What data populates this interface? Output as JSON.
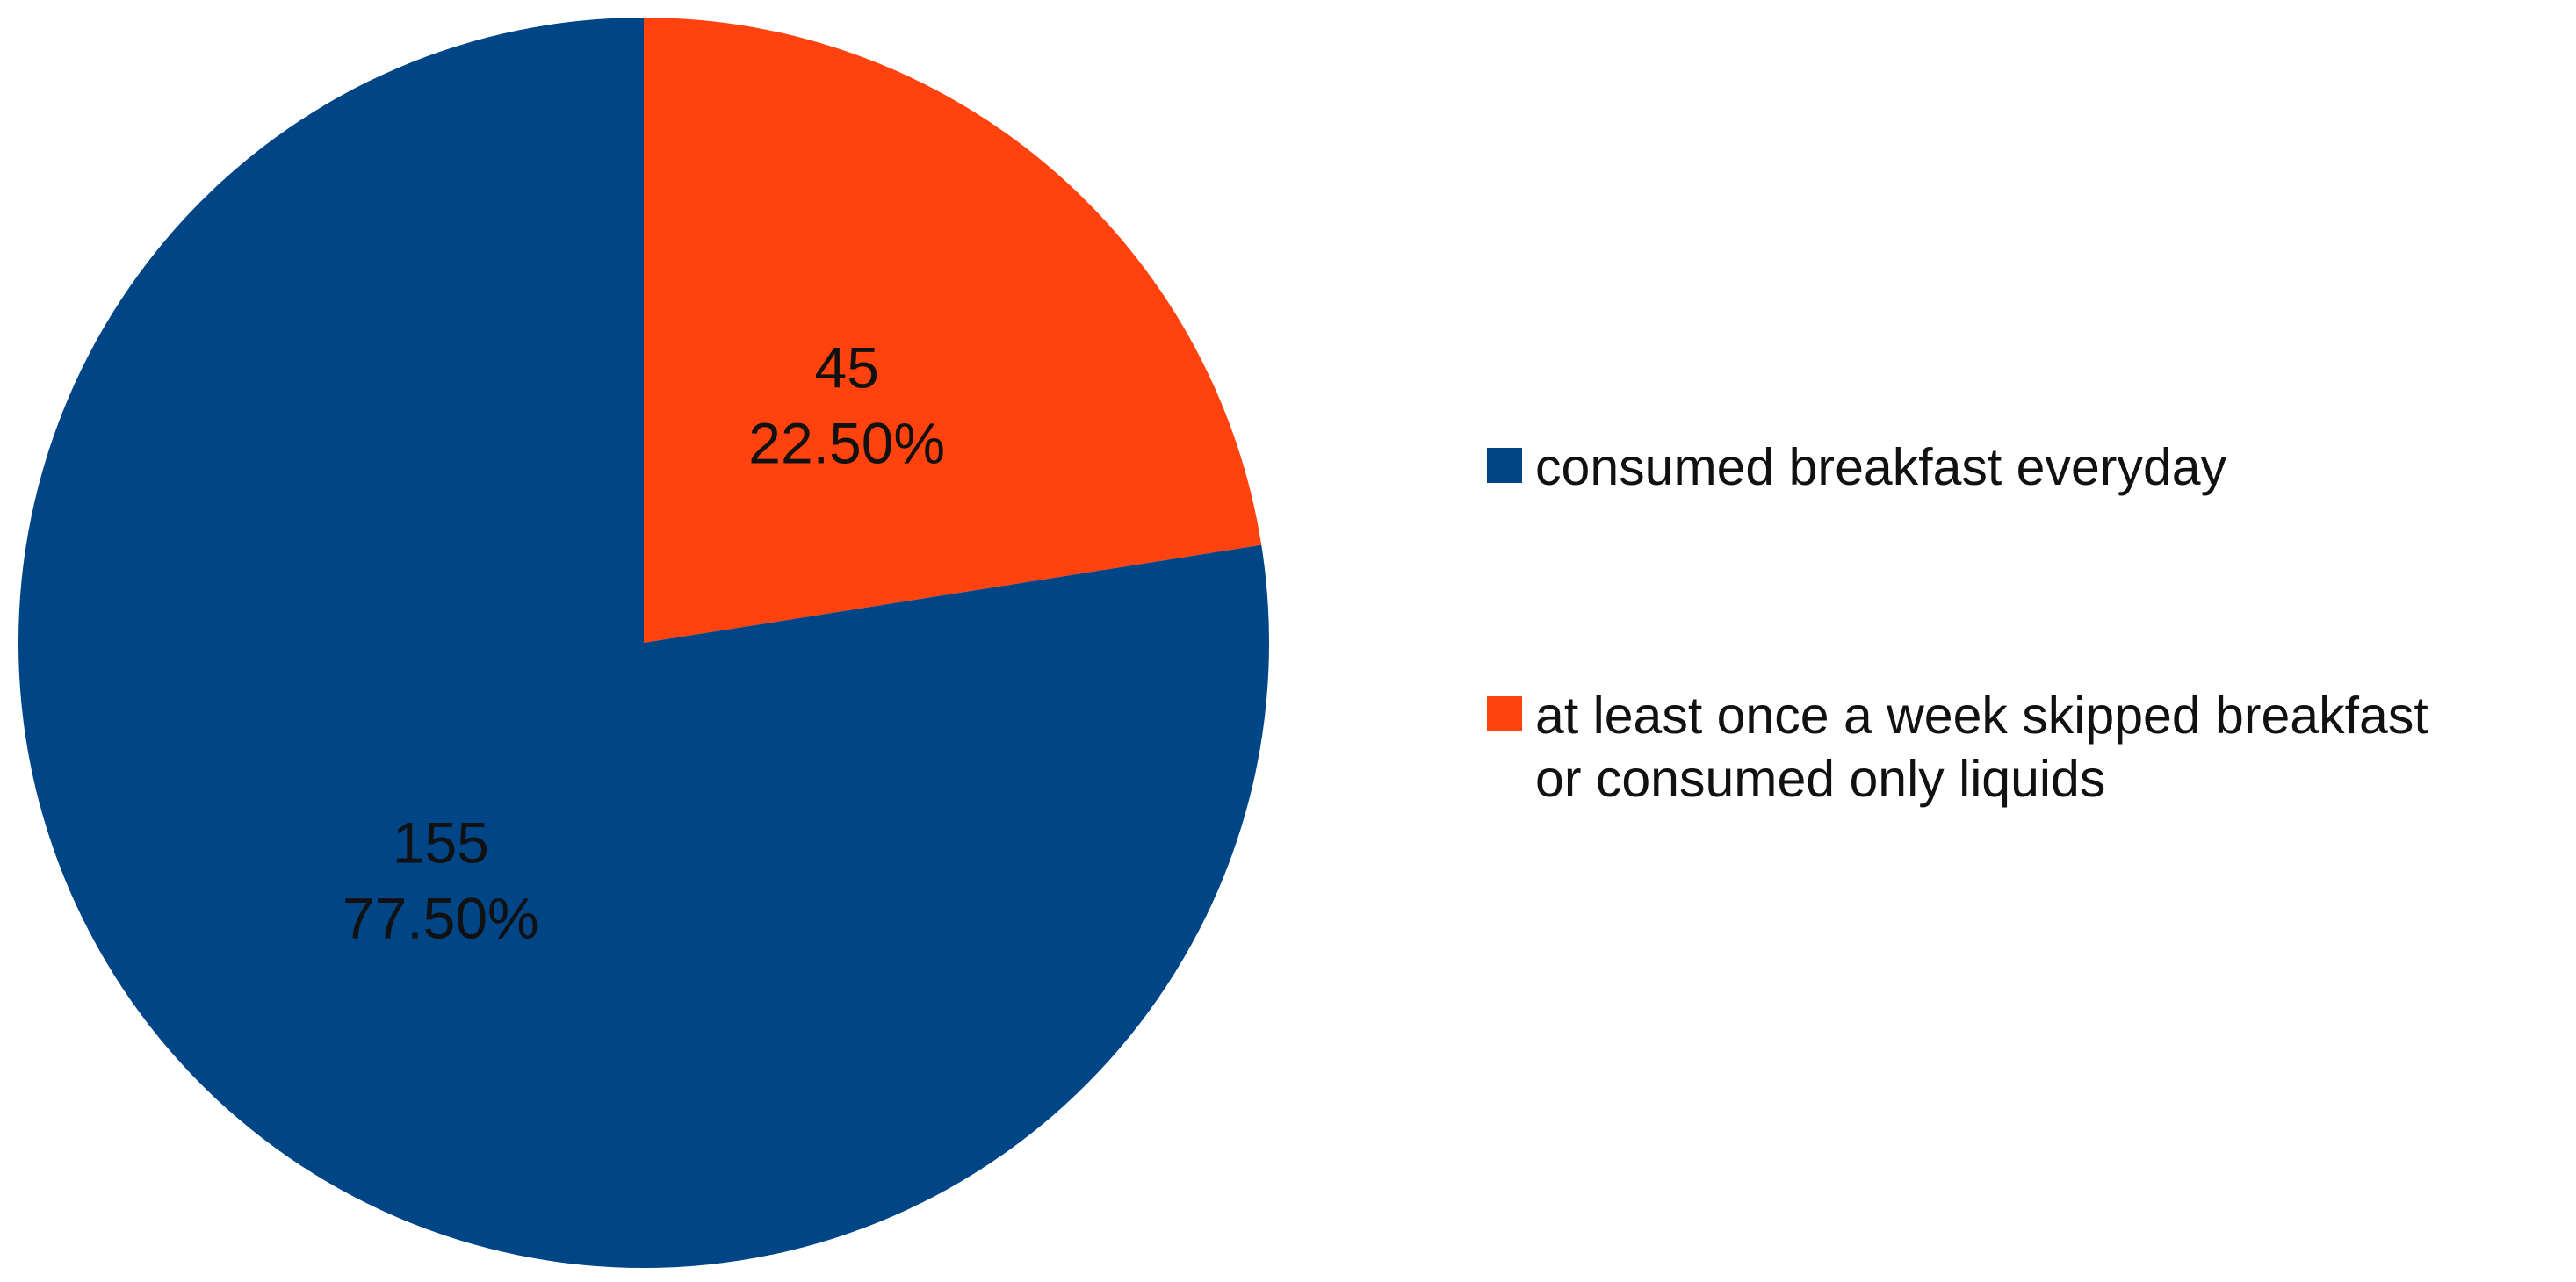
{
  "chart_data": {
    "type": "pie",
    "title": "",
    "categories": [
      "consumed breakfast everyday",
      "at least once a week skipped breakfast or consumed only liquids"
    ],
    "values": [
      155,
      45
    ],
    "percent_labels": [
      "77.50%",
      "22.50%"
    ],
    "colors": [
      "#004586",
      "#ff420e"
    ],
    "legend": {
      "position": "right",
      "entries": [
        {
          "lines": [
            "consumed breakfast everyday"
          ]
        },
        {
          "lines": [
            "at least once a week skipped breakfast",
            "or consumed only liquids"
          ]
        }
      ]
    }
  }
}
